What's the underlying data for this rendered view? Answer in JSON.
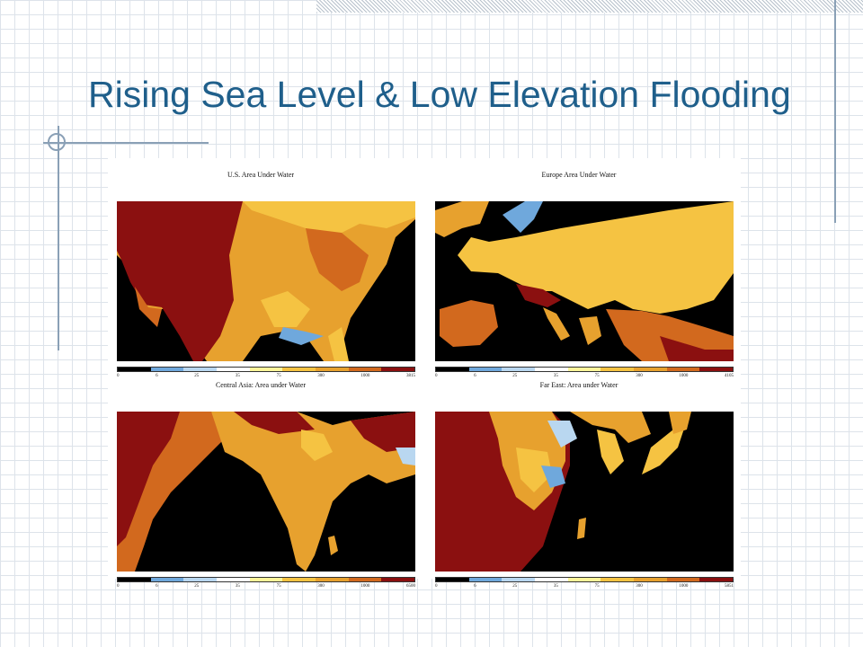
{
  "slide": {
    "title": "Rising Sea Level & Low Elevation Flooding"
  },
  "scale_colors": [
    "#000000",
    "#6fa8dc",
    "#b9d7f0",
    "#ffffff",
    "#fff59a",
    "#f5c342",
    "#e7a12e",
    "#d2691e",
    "#8b1010"
  ],
  "panels": [
    {
      "title": "U.S. Area Under Water",
      "ticks": [
        "0",
        "6",
        "25",
        "35",
        "75",
        "300",
        "1000",
        "3815"
      ]
    },
    {
      "title": "Europe Area Under Water",
      "ticks": [
        "0",
        "6",
        "25",
        "35",
        "75",
        "300",
        "1000",
        "4105"
      ]
    },
    {
      "title": "Central Asia: Area under Water",
      "ticks": [
        "0",
        "6",
        "25",
        "35",
        "75",
        "300",
        "1000",
        "6500"
      ]
    },
    {
      "title": "Far East: Area under Water",
      "ticks": [
        "0",
        "6",
        "25",
        "35",
        "75",
        "300",
        "1000",
        "5851"
      ]
    }
  ]
}
